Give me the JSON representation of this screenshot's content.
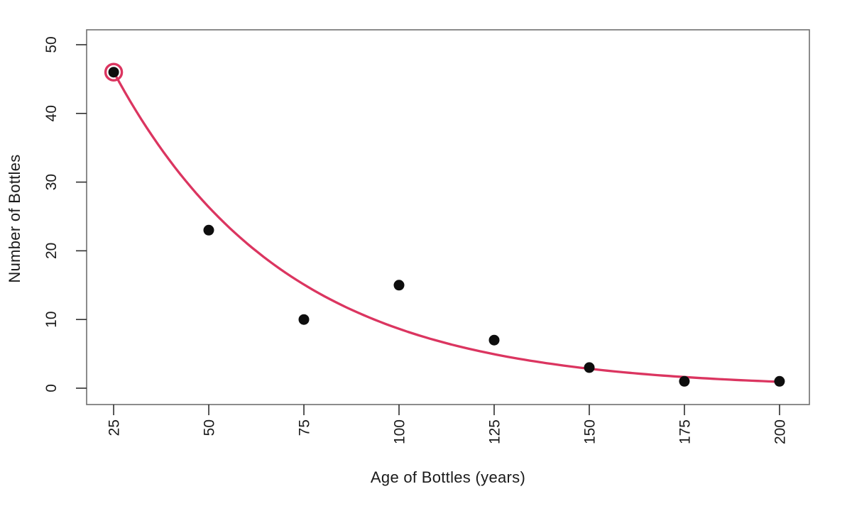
{
  "chart_data": {
    "type": "scatter",
    "title": "",
    "xlabel": "Age of Bottles (years)",
    "ylabel": "Number of Bottles",
    "x": [
      25,
      50,
      75,
      100,
      125,
      150,
      175,
      200
    ],
    "y": [
      46,
      23,
      10,
      15,
      7,
      3,
      1,
      1
    ],
    "x_ticks": [
      "25",
      "50",
      "75",
      "100",
      "125",
      "150",
      "175",
      "200"
    ],
    "y_ticks": [
      "0",
      "10",
      "20",
      "30",
      "40",
      "50"
    ],
    "xlim": [
      17.9,
      207.85
    ],
    "ylim": [
      -2.38,
      52.17
    ],
    "grid": false,
    "legend": "none",
    "tick_label_rotation_deg": -90,
    "point": {
      "color": "#0e0e0e",
      "radius": 7.5
    },
    "fit_curve": {
      "model": "exponential",
      "equation": "y = 80.4 * exp(-0.0223 * x)",
      "a": 80.4,
      "b": 0.0223,
      "x_range": [
        25,
        200
      ],
      "color": "#DB3560",
      "width": 3.3
    },
    "highlighted_point": {
      "x": 25,
      "y": 46,
      "ring_color": "#DB3560",
      "ring_radius": 11.5,
      "ring_width": 3.4
    },
    "axis": {
      "frame_color": "#6f6f6f",
      "tick_color": "#2e2e2e",
      "tick_label_color": "#1a1a1a",
      "tick_label_size": 21,
      "tick_length": 15
    }
  }
}
